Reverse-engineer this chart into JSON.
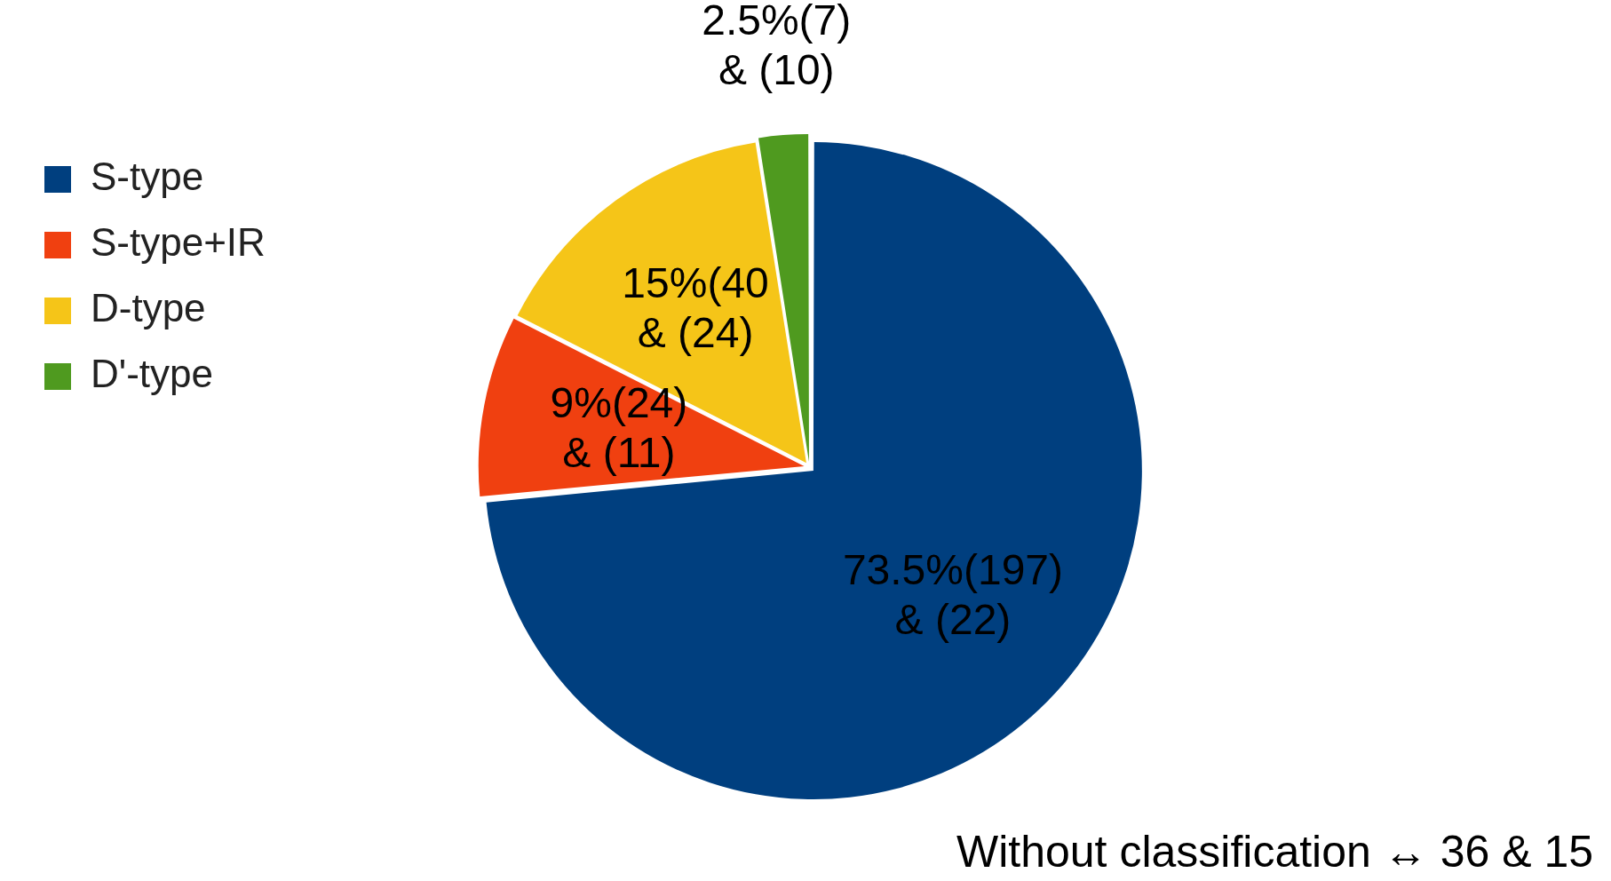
{
  "chart_data": {
    "type": "pie",
    "categories": [
      "S-type",
      "S-type+IR",
      "D-type",
      "D'-type"
    ],
    "values": [
      73.5,
      9,
      15,
      2.5
    ],
    "colors": [
      "#003f7f",
      "#f04010",
      "#f5c518",
      "#4f9a1f"
    ],
    "value_labels": [
      "73.5%(197)\n& (22)",
      "9%(24)\n& (11)",
      "15%(40\n& (24)",
      "2.5%(7)\n& (10)"
    ],
    "legend": "top left",
    "annotations": [
      "Without classification ↔ 36 & 15"
    ]
  }
}
